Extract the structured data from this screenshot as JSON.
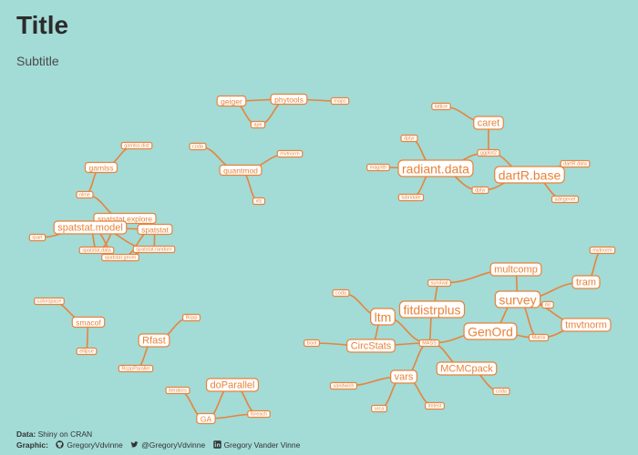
{
  "header": {
    "title": "Title",
    "subtitle": "Subtitle"
  },
  "colors": {
    "background": "#a3dbd6",
    "accent": "#e8833a",
    "node_fill": "#ffffff"
  },
  "graph": {
    "nodes": [
      {
        "id": "geiger",
        "label": "geiger",
        "size": "s"
      },
      {
        "id": "phytools",
        "label": "phytools",
        "size": "s"
      },
      {
        "id": "maps",
        "label": "maps",
        "size": "xs"
      },
      {
        "id": "ape",
        "label": "ape",
        "size": "xs"
      },
      {
        "id": "gamlss_dist",
        "label": "gamlss.dist",
        "size": "xs"
      },
      {
        "id": "gamlss",
        "label": "gamlss",
        "size": "s"
      },
      {
        "id": "nlme",
        "label": "nlme",
        "size": "xs"
      },
      {
        "id": "spatstat_explore",
        "label": "spatstat.explore",
        "size": "s"
      },
      {
        "id": "spatstat_model",
        "label": "spatstat.model",
        "size": "m"
      },
      {
        "id": "spatstat",
        "label": "spatstat",
        "size": "s"
      },
      {
        "id": "spatstat_data",
        "label": "spatstat.data",
        "size": "xs"
      },
      {
        "id": "spatstat_random",
        "label": "spatstat.random",
        "size": "xs"
      },
      {
        "id": "spatstat_geom",
        "label": "spatstat.geom",
        "size": "xs"
      },
      {
        "id": "rpart",
        "label": "rpart",
        "size": "xs"
      },
      {
        "id": "coda_q",
        "label": "coda",
        "size": "xs"
      },
      {
        "id": "mvtnorm_q",
        "label": "mvtnorm",
        "size": "xs"
      },
      {
        "id": "quantmod",
        "label": "quantmod",
        "size": "s"
      },
      {
        "id": "xts",
        "label": "xts",
        "size": "xs"
      },
      {
        "id": "lattice",
        "label": "lattice",
        "size": "xs"
      },
      {
        "id": "caret",
        "label": "caret",
        "size": "m"
      },
      {
        "id": "dplyr",
        "label": "dplyr",
        "size": "xs"
      },
      {
        "id": "ggplot2",
        "label": "ggplot2",
        "size": "xs"
      },
      {
        "id": "magrittr",
        "label": "magrittr",
        "size": "xs"
      },
      {
        "id": "radiant_data",
        "label": "radiant.data",
        "size": "l"
      },
      {
        "id": "dartR_data",
        "label": "dartR.data",
        "size": "xs"
      },
      {
        "id": "dartR_base",
        "label": "dartR.base",
        "size": "l"
      },
      {
        "id": "dplyr2",
        "label": "dplyr",
        "size": "xs"
      },
      {
        "id": "lubridate",
        "label": "lubridate",
        "size": "xs"
      },
      {
        "id": "adegenet",
        "label": "adegenet",
        "size": "xs"
      },
      {
        "id": "colorspace",
        "label": "colorspace",
        "size": "xs"
      },
      {
        "id": "smacof",
        "label": "smacof",
        "size": "s"
      },
      {
        "id": "ellipse",
        "label": "ellipse",
        "size": "xs"
      },
      {
        "id": "Rcpp",
        "label": "Rcpp",
        "size": "xs"
      },
      {
        "id": "Rfast",
        "label": "Rfast",
        "size": "m"
      },
      {
        "id": "RcppParallel",
        "label": "RcppParallel",
        "size": "xs"
      },
      {
        "id": "iterators",
        "label": "iterators",
        "size": "xs"
      },
      {
        "id": "doParallel",
        "label": "doParallel",
        "size": "m"
      },
      {
        "id": "GA",
        "label": "GA",
        "size": "s"
      },
      {
        "id": "foreach",
        "label": "foreach",
        "size": "xs"
      },
      {
        "id": "mvtnorm",
        "label": "mvtnorm",
        "size": "xs"
      },
      {
        "id": "multcomp",
        "label": "multcomp",
        "size": "m"
      },
      {
        "id": "tram",
        "label": "tram",
        "size": "m"
      },
      {
        "id": "survival",
        "label": "survival",
        "size": "xs"
      },
      {
        "id": "fitdistrplus",
        "label": "fitdistrplus",
        "size": "l"
      },
      {
        "id": "survey",
        "label": "survey",
        "size": "l"
      },
      {
        "id": "ltm",
        "label": "ltm",
        "size": "l"
      },
      {
        "id": "boot",
        "label": "boot",
        "size": "xs"
      },
      {
        "id": "GenOrd",
        "label": "GenOrd",
        "size": "l"
      },
      {
        "id": "tmvtnorm",
        "label": "tmvtnorm",
        "size": "m"
      },
      {
        "id": "Matrix",
        "label": "Matrix",
        "size": "xs"
      },
      {
        "id": "coda",
        "label": "coda",
        "size": "xs"
      },
      {
        "id": "CircStats",
        "label": "CircStats",
        "size": "m"
      },
      {
        "id": "MASS",
        "label": "MASS",
        "size": "xs"
      },
      {
        "id": "vars",
        "label": "vars",
        "size": "m"
      },
      {
        "id": "MCMCpack",
        "label": "MCMCpack",
        "size": "m"
      },
      {
        "id": "sandwich",
        "label": "sandwich",
        "size": "xs"
      },
      {
        "id": "coda2",
        "label": "coda",
        "size": "xs"
      },
      {
        "id": "urca",
        "label": "urca",
        "size": "xs"
      },
      {
        "id": "lmtest",
        "label": "lmtest",
        "size": "xs"
      },
      {
        "id": "mr",
        "label": "mr",
        "size": "xs"
      }
    ],
    "edges": [
      [
        "geiger",
        "phytools"
      ],
      [
        "phytools",
        "maps"
      ],
      [
        "geiger",
        "ape"
      ],
      [
        "phytools",
        "ape"
      ],
      [
        "gamlss_dist",
        "gamlss"
      ],
      [
        "gamlss",
        "nlme"
      ],
      [
        "nlme",
        "spatstat_explore"
      ],
      [
        "spatstat_explore",
        "spatstat_model"
      ],
      [
        "spatstat_explore",
        "spatstat"
      ],
      [
        "spatstat_model",
        "spatstat"
      ],
      [
        "spatstat_model",
        "rpart"
      ],
      [
        "spatstat_model",
        "spatstat_data"
      ],
      [
        "spatstat_model",
        "spatstat_random"
      ],
      [
        "spatstat_model",
        "spatstat_geom"
      ],
      [
        "spatstat",
        "spatstat_random"
      ],
      [
        "spatstat",
        "spatstat_geom"
      ],
      [
        "spatstat_explore",
        "spatstat_data"
      ],
      [
        "spatstat_random",
        "spatstat_geom"
      ],
      [
        "spatstat_data",
        "spatstat_geom"
      ],
      [
        "coda_q",
        "quantmod"
      ],
      [
        "mvtnorm_q",
        "quantmod"
      ],
      [
        "quantmod",
        "xts"
      ],
      [
        "lattice",
        "caret"
      ],
      [
        "caret",
        "ggplot2"
      ],
      [
        "dplyr",
        "radiant_data"
      ],
      [
        "magrittr",
        "radiant_data"
      ],
      [
        "radiant_data",
        "lubridate"
      ],
      [
        "radiant_data",
        "ggplot2"
      ],
      [
        "radiant_data",
        "dplyr2"
      ],
      [
        "ggplot2",
        "dartR_base"
      ],
      [
        "dartR_base",
        "dartR_data"
      ],
      [
        "dartR_base",
        "dplyr2"
      ],
      [
        "dartR_base",
        "adegenet"
      ],
      [
        "colorspace",
        "smacof"
      ],
      [
        "smacof",
        "ellipse"
      ],
      [
        "Rcpp",
        "Rfast"
      ],
      [
        "Rfast",
        "RcppParallel"
      ],
      [
        "iterators",
        "GA"
      ],
      [
        "GA",
        "doParallel"
      ],
      [
        "GA",
        "foreach"
      ],
      [
        "doParallel",
        "foreach"
      ],
      [
        "mvtnorm",
        "tram"
      ],
      [
        "tram",
        "survey"
      ],
      [
        "multcomp",
        "survival"
      ],
      [
        "multcomp",
        "survey"
      ],
      [
        "survival",
        "fitdistrplus"
      ],
      [
        "fitdistrplus",
        "MASS"
      ],
      [
        "survey",
        "mr"
      ],
      [
        "survey",
        "GenOrd"
      ],
      [
        "survey",
        "Matrix"
      ],
      [
        "tmvtnorm",
        "Matrix"
      ],
      [
        "tmvtnorm",
        "survey"
      ],
      [
        "GenOrd",
        "MASS"
      ],
      [
        "GenOrd",
        "Matrix"
      ],
      [
        "ltm",
        "MASS"
      ],
      [
        "ltm",
        "CircStats"
      ],
      [
        "boot",
        "CircStats"
      ],
      [
        "CircStats",
        "MASS"
      ],
      [
        "ltm",
        "coda"
      ],
      [
        "MASS",
        "vars"
      ],
      [
        "MASS",
        "MCMCpack"
      ],
      [
        "vars",
        "sandwich"
      ],
      [
        "vars",
        "urca"
      ],
      [
        "vars",
        "lmtest"
      ],
      [
        "MCMCpack",
        "coda2"
      ]
    ]
  },
  "footer": {
    "data_label": "Data:",
    "data_value": "Shiny on CRAN",
    "graphic_label": "Graphic:",
    "github": "GregoryVdvinne",
    "twitter": "@GregoryVdvinne",
    "linkedin": "Gregory Vander Vinne"
  }
}
